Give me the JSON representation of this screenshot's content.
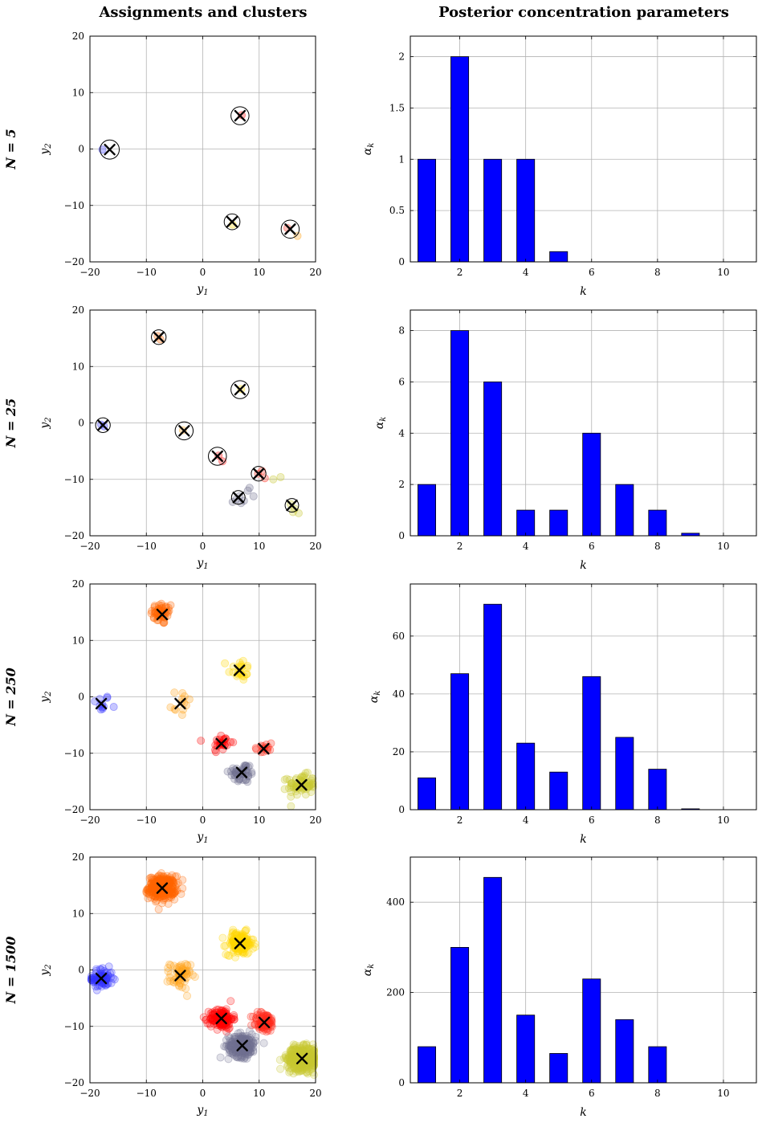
{
  "titles": {
    "left": "Assignments and clusters",
    "right": "Posterior concentration parameters"
  },
  "colors": {
    "bar": "#0000ff",
    "clusters": [
      "#3333ff",
      "#ff6600",
      "#ffa31a",
      "#ffd700",
      "#ff0000",
      "#ff2a1a",
      "#707090",
      "#c8c832"
    ]
  },
  "chart_data": [
    {
      "type": "scatter",
      "row_label": "N = 5",
      "n": 5,
      "xlabel": "y1",
      "ylabel": "y2",
      "xlim": [
        -20,
        20
      ],
      "ylim": [
        -20,
        20
      ],
      "xticks": [
        -20,
        -10,
        0,
        10,
        20
      ],
      "yticks": [
        -20,
        -10,
        0,
        10,
        20
      ],
      "grid": true,
      "points": [
        {
          "x": -17.8,
          "y": -0.1,
          "c": 0
        },
        {
          "x": 6.9,
          "y": 6.0,
          "c": 4
        },
        {
          "x": 5.3,
          "y": -13.4,
          "c": 3
        },
        {
          "x": 16.8,
          "y": -15.4,
          "c": 2
        },
        {
          "x": 15.0,
          "y": -14.0,
          "c": 5
        }
      ],
      "clusters": [
        {
          "x": -16.5,
          "y": -0.1,
          "circle": 1.7
        },
        {
          "x": 6.6,
          "y": 5.9,
          "circle": 1.6
        },
        {
          "x": 5.2,
          "y": -12.9,
          "circle": 1.4
        },
        {
          "x": 15.5,
          "y": -14.2,
          "circle": 1.6
        }
      ]
    },
    {
      "type": "bar",
      "xlabel": "k",
      "ylabel": "αk",
      "xlim": [
        0.5,
        11
      ],
      "ylim": [
        0,
        2.2
      ],
      "xticks": [
        2,
        4,
        6,
        8,
        10
      ],
      "yticks": [
        0,
        0.5,
        1,
        1.5,
        2
      ],
      "ytick_labels": [
        "0",
        "0.5",
        "1",
        "1.5",
        "2"
      ],
      "grid": true,
      "categories": [
        1,
        2,
        3,
        4,
        5,
        6,
        7,
        8,
        9,
        10
      ],
      "values": [
        1,
        2,
        1,
        1,
        0.1,
        0,
        0,
        0,
        0,
        0
      ]
    },
    {
      "type": "scatter",
      "row_label": "N = 25",
      "n": 25,
      "xlabel": "y1",
      "ylabel": "y2",
      "xlim": [
        -20,
        20
      ],
      "ylim": [
        -20,
        20
      ],
      "xticks": [
        -20,
        -10,
        0,
        10,
        20
      ],
      "yticks": [
        -20,
        -10,
        0,
        10,
        20
      ],
      "grid": true,
      "points": [
        {
          "x": -18.0,
          "y": -0.3,
          "c": 0
        },
        {
          "x": -17.5,
          "y": -0.6,
          "c": 0
        },
        {
          "x": -8.0,
          "y": 15.4,
          "c": 1
        },
        {
          "x": -7.5,
          "y": 14.8,
          "c": 1
        },
        {
          "x": -3.5,
          "y": -1.3,
          "c": 2
        },
        {
          "x": 6.8,
          "y": 6.0,
          "c": 3
        },
        {
          "x": 2.8,
          "y": -5.8,
          "c": 4
        },
        {
          "x": 3.5,
          "y": -6.8,
          "c": 4
        },
        {
          "x": 9.8,
          "y": -9.0,
          "c": 5
        },
        {
          "x": 10.5,
          "y": -8.5,
          "c": 5
        },
        {
          "x": 11.0,
          "y": -9.8,
          "c": 5
        },
        {
          "x": 5.3,
          "y": -14.0,
          "c": 6
        },
        {
          "x": 6.0,
          "y": -13.5,
          "c": 6
        },
        {
          "x": 6.5,
          "y": -13.0,
          "c": 6
        },
        {
          "x": 7.3,
          "y": -13.8,
          "c": 6
        },
        {
          "x": 8.0,
          "y": -12.0,
          "c": 6
        },
        {
          "x": 9.0,
          "y": -13.0,
          "c": 6
        },
        {
          "x": 6.8,
          "y": -14.2,
          "c": 6
        },
        {
          "x": 8.3,
          "y": -11.5,
          "c": 6
        },
        {
          "x": 15.6,
          "y": -14.4,
          "c": 7
        },
        {
          "x": 16.3,
          "y": -15.2,
          "c": 7
        },
        {
          "x": 17.0,
          "y": -16.0,
          "c": 7
        },
        {
          "x": 16.0,
          "y": -15.8,
          "c": 7
        },
        {
          "x": 12.5,
          "y": -10.0,
          "c": 7
        },
        {
          "x": 13.8,
          "y": -9.6,
          "c": 7
        }
      ],
      "clusters": [
        {
          "x": -17.7,
          "y": -0.4,
          "circle": 1.3
        },
        {
          "x": -7.8,
          "y": 15.2,
          "circle": 1.3
        },
        {
          "x": -3.3,
          "y": -1.4,
          "circle": 1.6
        },
        {
          "x": 6.6,
          "y": 5.9,
          "circle": 1.6
        },
        {
          "x": 2.6,
          "y": -5.9,
          "circle": 1.6
        },
        {
          "x": 9.9,
          "y": -9.0,
          "circle": 1.3
        },
        {
          "x": 6.3,
          "y": -13.2,
          "circle": 1.2
        },
        {
          "x": 15.8,
          "y": -14.6,
          "circle": 1.2
        }
      ]
    },
    {
      "type": "bar",
      "xlabel": "k",
      "ylabel": "αk",
      "xlim": [
        0.5,
        11
      ],
      "ylim": [
        0,
        8.8
      ],
      "xticks": [
        2,
        4,
        6,
        8,
        10
      ],
      "yticks": [
        0,
        2,
        4,
        6,
        8
      ],
      "ytick_labels": [
        "0",
        "2",
        "4",
        "6",
        "8"
      ],
      "grid": true,
      "categories": [
        1,
        2,
        3,
        4,
        5,
        6,
        7,
        8,
        9,
        10
      ],
      "values": [
        2,
        8,
        6,
        1,
        1,
        4,
        2,
        1,
        0.1,
        0
      ]
    },
    {
      "type": "scatter",
      "row_label": "N = 250",
      "n": 250,
      "xlabel": "y1",
      "ylabel": "y2",
      "xlim": [
        -20,
        20
      ],
      "ylim": [
        -20,
        20
      ],
      "xticks": [
        -20,
        -10,
        0,
        10,
        20
      ],
      "yticks": [
        -20,
        -10,
        0,
        10,
        20
      ],
      "grid": true,
      "blobs": [
        {
          "x": -18.0,
          "y": -1.2,
          "sx": 0.8,
          "sy": 0.8,
          "n": 11,
          "c": 0
        },
        {
          "x": -7.2,
          "y": 14.8,
          "sx": 1.0,
          "sy": 1.0,
          "n": 47,
          "c": 1
        },
        {
          "x": -4.0,
          "y": -1.0,
          "sx": 1.3,
          "sy": 1.3,
          "n": 13,
          "c": 2
        },
        {
          "x": 6.5,
          "y": 4.8,
          "sx": 1.0,
          "sy": 1.0,
          "n": 23,
          "c": 3
        },
        {
          "x": 3.3,
          "y": -8.2,
          "sx": 0.9,
          "sy": 0.9,
          "n": 25,
          "c": 4
        },
        {
          "x": 10.8,
          "y": -9.2,
          "sx": 0.9,
          "sy": 0.7,
          "n": 14,
          "c": 5
        },
        {
          "x": 7.0,
          "y": -13.5,
          "sx": 1.2,
          "sy": 0.9,
          "n": 46,
          "c": 6
        },
        {
          "x": 17.5,
          "y": -15.6,
          "sx": 1.2,
          "sy": 0.9,
          "n": 71,
          "c": 7
        }
      ],
      "clusters": [
        {
          "x": -18.0,
          "y": -1.2
        },
        {
          "x": -7.2,
          "y": 14.6
        },
        {
          "x": -4.0,
          "y": -1.2
        },
        {
          "x": 6.5,
          "y": 4.7
        },
        {
          "x": 3.3,
          "y": -8.3
        },
        {
          "x": 10.8,
          "y": -9.2
        },
        {
          "x": 6.9,
          "y": -13.4
        },
        {
          "x": 17.5,
          "y": -15.6
        }
      ]
    },
    {
      "type": "bar",
      "xlabel": "k",
      "ylabel": "αk",
      "xlim": [
        0.5,
        11
      ],
      "ylim": [
        0,
        78
      ],
      "xticks": [
        2,
        4,
        6,
        8,
        10
      ],
      "yticks": [
        0,
        20,
        40,
        60
      ],
      "ytick_labels": [
        "0",
        "20",
        "40",
        "60"
      ],
      "grid": true,
      "categories": [
        1,
        2,
        3,
        4,
        5,
        6,
        7,
        8,
        9,
        10
      ],
      "values": [
        11,
        47,
        71,
        23,
        13,
        46,
        25,
        14,
        0.3,
        0
      ]
    },
    {
      "type": "scatter",
      "row_label": "N = 1500",
      "n": 1500,
      "xlabel": "y1",
      "ylabel": "y2",
      "xlim": [
        -20,
        20
      ],
      "ylim": [
        -20,
        20
      ],
      "xticks": [
        -20,
        -10,
        0,
        10,
        20
      ],
      "yticks": [
        -20,
        -10,
        0,
        10,
        20
      ],
      "grid": true,
      "blobs": [
        {
          "x": -18.0,
          "y": -1.5,
          "sx": 1.0,
          "sy": 0.9,
          "n": 80,
          "c": 0
        },
        {
          "x": -7.2,
          "y": 14.6,
          "sx": 1.2,
          "sy": 1.0,
          "n": 300,
          "c": 1
        },
        {
          "x": -4.0,
          "y": -1.0,
          "sx": 0.9,
          "sy": 1.2,
          "n": 65,
          "c": 2
        },
        {
          "x": 6.6,
          "y": 4.7,
          "sx": 1.2,
          "sy": 1.0,
          "n": 150,
          "c": 3
        },
        {
          "x": 3.3,
          "y": -8.6,
          "sx": 1.0,
          "sy": 0.9,
          "n": 140,
          "c": 4
        },
        {
          "x": 10.9,
          "y": -9.3,
          "sx": 1.0,
          "sy": 0.9,
          "n": 80,
          "c": 5
        },
        {
          "x": 7.0,
          "y": -13.4,
          "sx": 1.2,
          "sy": 1.0,
          "n": 230,
          "c": 6
        },
        {
          "x": 17.6,
          "y": -15.7,
          "sx": 1.3,
          "sy": 1.0,
          "n": 455,
          "c": 7
        }
      ],
      "clusters": [
        {
          "x": -18.0,
          "y": -1.5
        },
        {
          "x": -7.2,
          "y": 14.5
        },
        {
          "x": -4.0,
          "y": -1.0
        },
        {
          "x": 6.6,
          "y": 4.7
        },
        {
          "x": 3.3,
          "y": -8.6
        },
        {
          "x": 10.9,
          "y": -9.3
        },
        {
          "x": 7.0,
          "y": -13.4
        },
        {
          "x": 17.6,
          "y": -15.7
        }
      ]
    },
    {
      "type": "bar",
      "xlabel": "k",
      "ylabel": "αk",
      "xlim": [
        0.5,
        11
      ],
      "ylim": [
        0,
        500
      ],
      "xticks": [
        2,
        4,
        6,
        8,
        10
      ],
      "yticks": [
        0,
        200,
        400
      ],
      "ytick_labels": [
        "0",
        "200",
        "400"
      ],
      "grid": true,
      "categories": [
        1,
        2,
        3,
        4,
        5,
        6,
        7,
        8,
        9,
        10
      ],
      "values": [
        80,
        300,
        455,
        150,
        65,
        230,
        140,
        80,
        0,
        0
      ]
    }
  ]
}
